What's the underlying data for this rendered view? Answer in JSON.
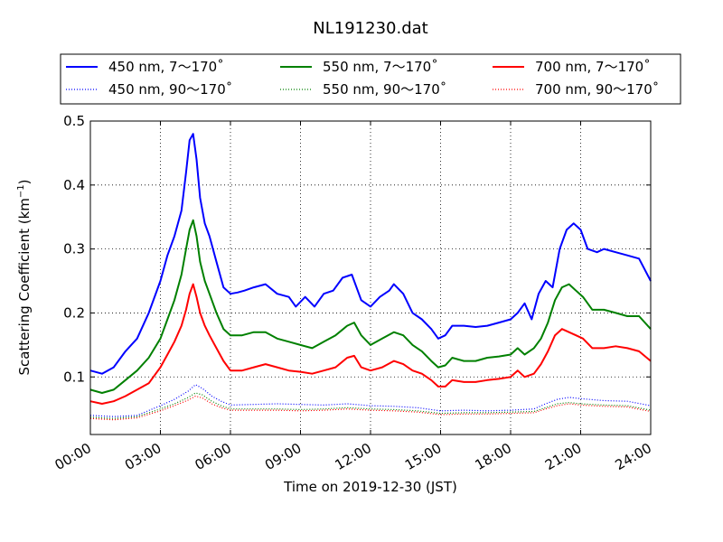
{
  "chart_data": {
    "type": "line",
    "title": "NL191230.dat",
    "xlabel": "Time on 2019-12-30 (JST)",
    "ylabel": "Scattering Coefficient (km",
    "ylabel_superscript": "−1",
    "ylabel_suffix": ")",
    "xlim": [
      0,
      24
    ],
    "ylim": [
      0.01,
      0.5
    ],
    "x_ticks": [
      0,
      3,
      6,
      9,
      12,
      15,
      18,
      21,
      24
    ],
    "x_tick_labels": [
      "00:00",
      "03:00",
      "06:00",
      "09:00",
      "12:00",
      "15:00",
      "18:00",
      "21:00",
      "24:00"
    ],
    "y_ticks": [
      0.1,
      0.2,
      0.3,
      0.4,
      0.5
    ],
    "y_tick_labels": [
      "0.1",
      "0.2",
      "0.3",
      "0.4",
      "0.5"
    ],
    "grid": true,
    "legend_position": "top, above plot",
    "series": [
      {
        "name": "450 nm, 7～170˚",
        "color": "#0000ff",
        "style": "solid",
        "x": [
          0,
          0.5,
          1.0,
          1.5,
          2.0,
          2.5,
          3.0,
          3.3,
          3.6,
          3.9,
          4.1,
          4.25,
          4.4,
          4.55,
          4.7,
          4.9,
          5.1,
          5.4,
          5.7,
          6.0,
          6.3,
          6.6,
          7.0,
          7.5,
          8.0,
          8.5,
          8.8,
          9.2,
          9.6,
          10.0,
          10.4,
          10.8,
          11.2,
          11.6,
          12.0,
          12.4,
          12.8,
          13.0,
          13.4,
          13.8,
          14.2,
          14.6,
          14.9,
          15.2,
          15.5,
          16.0,
          16.5,
          17.0,
          17.5,
          18.0,
          18.3,
          18.6,
          18.9,
          19.2,
          19.5,
          19.8,
          20.1,
          20.4,
          20.7,
          21.0,
          21.3,
          21.7,
          22.0,
          22.5,
          23.0,
          23.5,
          24.0
        ],
        "y": [
          0.11,
          0.105,
          0.115,
          0.14,
          0.16,
          0.2,
          0.25,
          0.29,
          0.32,
          0.36,
          0.42,
          0.47,
          0.48,
          0.44,
          0.38,
          0.34,
          0.32,
          0.28,
          0.24,
          0.23,
          0.232,
          0.235,
          0.24,
          0.245,
          0.23,
          0.225,
          0.21,
          0.225,
          0.21,
          0.23,
          0.235,
          0.255,
          0.26,
          0.22,
          0.21,
          0.225,
          0.235,
          0.245,
          0.23,
          0.2,
          0.19,
          0.175,
          0.16,
          0.165,
          0.18,
          0.18,
          0.178,
          0.18,
          0.185,
          0.19,
          0.2,
          0.215,
          0.19,
          0.23,
          0.25,
          0.24,
          0.3,
          0.33,
          0.34,
          0.33,
          0.3,
          0.295,
          0.3,
          0.295,
          0.29,
          0.285,
          0.25
        ]
      },
      {
        "name": "450 nm, 90～170˚",
        "color": "#0000ff",
        "style": "dotted",
        "x": [
          0,
          1,
          2,
          3,
          3.6,
          4.2,
          4.5,
          4.8,
          5.2,
          5.6,
          6.0,
          7,
          8,
          9,
          10,
          11,
          12,
          13,
          14,
          15,
          16,
          17,
          18,
          19,
          19.5,
          20,
          20.5,
          21,
          22,
          23,
          24
        ],
        "y": [
          0.04,
          0.038,
          0.04,
          0.055,
          0.065,
          0.078,
          0.088,
          0.082,
          0.07,
          0.062,
          0.056,
          0.057,
          0.058,
          0.057,
          0.056,
          0.058,
          0.055,
          0.054,
          0.052,
          0.047,
          0.048,
          0.047,
          0.048,
          0.05,
          0.058,
          0.065,
          0.068,
          0.066,
          0.063,
          0.062,
          0.055
        ]
      },
      {
        "name": "550 nm, 7～170˚",
        "color": "#008000",
        "style": "solid",
        "x": [
          0,
          0.5,
          1.0,
          1.5,
          2.0,
          2.5,
          3.0,
          3.3,
          3.6,
          3.9,
          4.1,
          4.25,
          4.4,
          4.55,
          4.7,
          4.9,
          5.1,
          5.4,
          5.7,
          6.0,
          6.5,
          7.0,
          7.5,
          8.0,
          8.5,
          9.0,
          9.5,
          10.0,
          10.5,
          11.0,
          11.3,
          11.6,
          12.0,
          12.5,
          13.0,
          13.4,
          13.8,
          14.2,
          14.6,
          14.9,
          15.2,
          15.5,
          16.0,
          16.5,
          17.0,
          17.5,
          18.0,
          18.3,
          18.6,
          19.0,
          19.3,
          19.6,
          19.9,
          20.2,
          20.5,
          20.8,
          21.1,
          21.5,
          22.0,
          22.5,
          23.0,
          23.5,
          24.0
        ],
        "y": [
          0.08,
          0.075,
          0.08,
          0.095,
          0.11,
          0.13,
          0.16,
          0.19,
          0.22,
          0.26,
          0.3,
          0.33,
          0.345,
          0.32,
          0.28,
          0.25,
          0.23,
          0.2,
          0.175,
          0.165,
          0.165,
          0.17,
          0.17,
          0.16,
          0.155,
          0.15,
          0.145,
          0.155,
          0.165,
          0.18,
          0.185,
          0.165,
          0.15,
          0.16,
          0.17,
          0.165,
          0.15,
          0.14,
          0.125,
          0.115,
          0.118,
          0.13,
          0.125,
          0.125,
          0.13,
          0.132,
          0.135,
          0.145,
          0.135,
          0.145,
          0.16,
          0.185,
          0.22,
          0.24,
          0.245,
          0.235,
          0.225,
          0.205,
          0.205,
          0.2,
          0.195,
          0.195,
          0.175
        ]
      },
      {
        "name": "550 nm, 90～170˚",
        "color": "#008000",
        "style": "dotted",
        "x": [
          0,
          1,
          2,
          3,
          3.6,
          4.2,
          4.5,
          4.8,
          5.2,
          5.6,
          6.0,
          7,
          8,
          9,
          10,
          11,
          12,
          13,
          14,
          15,
          16,
          17,
          18,
          19,
          19.5,
          20,
          20.5,
          21,
          22,
          23,
          24
        ],
        "y": [
          0.037,
          0.035,
          0.038,
          0.05,
          0.058,
          0.068,
          0.075,
          0.072,
          0.062,
          0.055,
          0.05,
          0.05,
          0.05,
          0.049,
          0.05,
          0.052,
          0.05,
          0.049,
          0.047,
          0.043,
          0.044,
          0.044,
          0.045,
          0.046,
          0.052,
          0.058,
          0.06,
          0.058,
          0.056,
          0.055,
          0.048
        ]
      },
      {
        "name": "700 nm, 7～170˚",
        "color": "#ff0000",
        "style": "solid",
        "x": [
          0,
          0.5,
          1.0,
          1.5,
          2.0,
          2.5,
          3.0,
          3.3,
          3.6,
          3.9,
          4.1,
          4.25,
          4.4,
          4.55,
          4.7,
          4.9,
          5.1,
          5.4,
          5.7,
          6.0,
          6.5,
          7.0,
          7.5,
          8.0,
          8.5,
          9.0,
          9.5,
          10.0,
          10.5,
          11.0,
          11.3,
          11.6,
          12.0,
          12.5,
          13.0,
          13.4,
          13.8,
          14.2,
          14.6,
          14.9,
          15.2,
          15.5,
          16.0,
          16.5,
          17.0,
          17.5,
          18.0,
          18.3,
          18.6,
          19.0,
          19.3,
          19.6,
          19.9,
          20.2,
          20.5,
          20.8,
          21.1,
          21.5,
          22.0,
          22.5,
          23.0,
          23.5,
          24.0
        ],
        "y": [
          0.062,
          0.058,
          0.062,
          0.07,
          0.08,
          0.09,
          0.115,
          0.135,
          0.155,
          0.18,
          0.205,
          0.23,
          0.245,
          0.225,
          0.2,
          0.18,
          0.165,
          0.145,
          0.125,
          0.11,
          0.11,
          0.115,
          0.12,
          0.115,
          0.11,
          0.108,
          0.105,
          0.11,
          0.115,
          0.13,
          0.133,
          0.115,
          0.11,
          0.115,
          0.125,
          0.12,
          0.11,
          0.105,
          0.095,
          0.085,
          0.085,
          0.095,
          0.092,
          0.092,
          0.095,
          0.097,
          0.1,
          0.11,
          0.1,
          0.105,
          0.12,
          0.14,
          0.165,
          0.175,
          0.17,
          0.165,
          0.16,
          0.145,
          0.145,
          0.148,
          0.145,
          0.14,
          0.125
        ]
      },
      {
        "name": "700 nm, 90～170˚",
        "color": "#ff0000",
        "style": "dotted",
        "x": [
          0,
          1,
          2,
          3,
          3.6,
          4.2,
          4.5,
          4.8,
          5.2,
          5.6,
          6.0,
          7,
          8,
          9,
          10,
          11,
          12,
          13,
          14,
          15,
          16,
          17,
          18,
          19,
          19.5,
          20,
          20.5,
          21,
          22,
          23,
          24
        ],
        "y": [
          0.035,
          0.033,
          0.036,
          0.047,
          0.055,
          0.064,
          0.07,
          0.067,
          0.058,
          0.052,
          0.048,
          0.048,
          0.048,
          0.047,
          0.048,
          0.05,
          0.048,
          0.047,
          0.045,
          0.041,
          0.042,
          0.042,
          0.043,
          0.044,
          0.05,
          0.055,
          0.058,
          0.056,
          0.054,
          0.053,
          0.046
        ]
      }
    ]
  }
}
